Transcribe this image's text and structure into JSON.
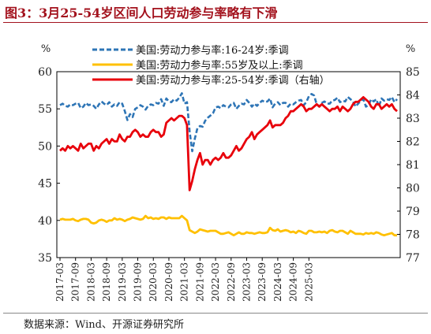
{
  "title": "图3：3月25-54岁区间人口劳动参与率略有下滑",
  "source": "数据来源：Wind、开源证券研究所",
  "chart_data": {
    "type": "line",
    "left_axis": {
      "unit": "%",
      "ylim": [
        35,
        60
      ],
      "ticks": [
        "35",
        "40",
        "45",
        "50",
        "55",
        "60"
      ]
    },
    "right_axis": {
      "unit": "%",
      "ylim": [
        77,
        85
      ],
      "ticks": [
        "77",
        "78",
        "79",
        "80",
        "81",
        "82",
        "83",
        "84",
        "85"
      ]
    },
    "x_ticks": [
      "2017-03",
      "2017-09",
      "2018-03",
      "2018-09",
      "2019-03",
      "2019-09",
      "2020-03",
      "2020-09",
      "2021-03",
      "2021-09",
      "2022-03",
      "2022-09",
      "2023-03",
      "2023-09",
      "2024-03",
      "2024-09",
      "2025-03"
    ],
    "series": [
      {
        "name": "美国:劳动力参与率:16-24岁:季调",
        "axis": "left",
        "color": "#2e75b6",
        "style": "dashed",
        "values": [
          55.5,
          55.7,
          55.4,
          55.3,
          55.6,
          55.5,
          55.7,
          55.8,
          55.1,
          55.3,
          55.8,
          55.5,
          55.6,
          55.4,
          55.0,
          55.6,
          56.0,
          55.7,
          55.5,
          55.9,
          55.3,
          55.6,
          55.4,
          55.9,
          55.7,
          54.7,
          53.5,
          54.3,
          53.9,
          55.0,
          55.2,
          55.5,
          55.3,
          54.9,
          55.4,
          55.6,
          55.5,
          55.8,
          55.7,
          56.3,
          55.4,
          56.4,
          56.0,
          55.9,
          56.3,
          56.1,
          56.5,
          57.1,
          55.7,
          55.9,
          52.0,
          49.3,
          51.0,
          52.4,
          52.7,
          52.6,
          53.4,
          53.8,
          54.1,
          54.4,
          55.2,
          55.3,
          55.1,
          55.5,
          55.3,
          55.2,
          55.6,
          55.8,
          55.0,
          55.4,
          55.7,
          55.6,
          56.2,
          55.8,
          55.3,
          55.7,
          55.4,
          55.8,
          56.1,
          55.9,
          56.0,
          56.4,
          55.2,
          55.7,
          55.9,
          55.5,
          55.8,
          55.8,
          55.3,
          55.7,
          55.6,
          55.9,
          56.1,
          56.2,
          55.5,
          55.9,
          56.7,
          57.0,
          56.8,
          55.6,
          55.3,
          55.8,
          56.0,
          55.7,
          55.7,
          56.1,
          56.2,
          56.5,
          55.9,
          56.1,
          56.0,
          56.6,
          56.3,
          56.0,
          55.3,
          55.7,
          56.1,
          56.3,
          55.3,
          55.5,
          56.3,
          56.0,
          56.3,
          55.3,
          56.4,
          56.1,
          56.3,
          56.2,
          56.6,
          55.9,
          56.3
        ]
      },
      {
        "name": "美国:劳动力参与率:55岁及以上:季调",
        "axis": "left",
        "color": "#ffc000",
        "style": "solid",
        "values": [
          40.1,
          40.2,
          40.1,
          40.1,
          40.1,
          40.2,
          40.0,
          39.9,
          40.1,
          40.2,
          40.2,
          40.1,
          39.7,
          39.6,
          39.7,
          40.0,
          40.1,
          40.0,
          39.8,
          40.0,
          40.0,
          40.3,
          40.1,
          40.2,
          40.1,
          39.9,
          40.1,
          40.2,
          40.4,
          40.3,
          40.2,
          40.1,
          40.2,
          40.6,
          40.3,
          40.4,
          40.2,
          40.3,
          40.2,
          40.4,
          40.4,
          40.2,
          40.4,
          40.3,
          40.3,
          40.3,
          40.3,
          40.6,
          40.3,
          40.0,
          38.7,
          38.5,
          38.3,
          38.5,
          38.8,
          38.7,
          38.6,
          38.5,
          38.6,
          38.6,
          38.6,
          38.4,
          38.2,
          38.2,
          38.3,
          38.4,
          38.2,
          38.0,
          38.2,
          38.4,
          38.2,
          38.2,
          38.4,
          38.3,
          38.3,
          38.2,
          38.3,
          38.4,
          38.3,
          38.3,
          38.4,
          39.0,
          38.7,
          38.6,
          38.8,
          38.5,
          38.6,
          38.7,
          38.6,
          38.4,
          38.5,
          38.3,
          38.6,
          38.5,
          38.3,
          38.2,
          38.6,
          38.6,
          38.4,
          38.4,
          38.5,
          38.4,
          38.5,
          38.3,
          38.6,
          38.7,
          38.5,
          38.4,
          38.6,
          38.6,
          38.4,
          38.2,
          38.6,
          38.4,
          38.2,
          38.2,
          38.2,
          38.1,
          38.3,
          38.2,
          38.3,
          38.2,
          38.4,
          38.3,
          38.1,
          38.0,
          38.1,
          38.2,
          38.3,
          38.0,
          38.0
        ]
      },
      {
        "name": "美国:劳动力参与率:25-54岁:季调（右轴）",
        "axis": "right",
        "color": "#e8000b",
        "style": "solid",
        "values": [
          81.6,
          81.7,
          81.6,
          81.8,
          81.7,
          81.8,
          81.7,
          81.6,
          81.9,
          81.7,
          81.8,
          81.9,
          81.9,
          81.6,
          81.8,
          81.7,
          81.9,
          82.0,
          82.1,
          81.9,
          82.1,
          82.0,
          82.0,
          82.3,
          82.1,
          82.0,
          82.2,
          82.2,
          82.4,
          82.5,
          82.4,
          82.2,
          82.3,
          82.2,
          82.2,
          82.4,
          82.5,
          82.4,
          82.4,
          82.2,
          82.3,
          82.8,
          82.9,
          83.0,
          82.9,
          83.0,
          83.1,
          83.1,
          83.0,
          82.7,
          79.9,
          80.3,
          80.8,
          81.2,
          81.5,
          81.0,
          81.2,
          81.2,
          81.0,
          81.2,
          81.3,
          81.2,
          81.3,
          81.5,
          81.3,
          81.3,
          81.4,
          81.6,
          81.8,
          81.6,
          81.7,
          81.9,
          82.1,
          82.2,
          82.4,
          82.1,
          82.3,
          82.4,
          82.5,
          82.6,
          82.7,
          82.9,
          82.6,
          82.7,
          82.7,
          82.7,
          82.8,
          83.0,
          83.1,
          83.3,
          83.3,
          83.4,
          83.5,
          83.6,
          83.5,
          83.3,
          83.4,
          83.4,
          83.5,
          83.6,
          83.5,
          83.6,
          83.5,
          83.4,
          83.3,
          83.4,
          83.4,
          83.5,
          83.3,
          83.5,
          83.4,
          83.3,
          83.4,
          83.6,
          83.7,
          83.7,
          83.8,
          83.9,
          83.8,
          83.7,
          83.5,
          83.4,
          83.6,
          83.6,
          83.4,
          83.5,
          83.6,
          83.5,
          83.6,
          83.4,
          83.3
        ]
      }
    ]
  }
}
